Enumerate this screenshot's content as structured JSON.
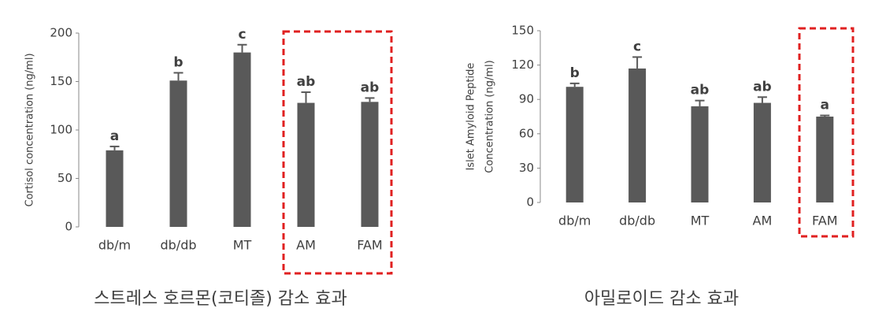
{
  "chart_data": [
    {
      "type": "bar",
      "title": "스트레스 호르몬(코티졸) 감소 효과",
      "y_label": "Cortisol concentration (ng/ml)",
      "categories": [
        "db/m",
        "db/db",
        "MT",
        "AM",
        "FAM"
      ],
      "values": [
        79,
        151,
        180,
        128,
        129
      ],
      "errors": [
        4,
        8,
        8,
        11,
        4
      ],
      "annotations": [
        "a",
        "b",
        "c",
        "ab",
        "ab"
      ],
      "color": "#595959",
      "ylim": [
        0,
        200
      ],
      "yticks": [
        0,
        50,
        100,
        150,
        200
      ]
    },
    {
      "type": "bar",
      "title": "아밀로이드 감소 효과",
      "y_label": [
        "Islet Amyloid Peptide",
        "Concentration (ng/ml)"
      ],
      "categories": [
        "db/m",
        "db/db",
        "MT",
        "AM",
        "FAM"
      ],
      "values": [
        101,
        117,
        84,
        87,
        75
      ],
      "errors": [
        3,
        10,
        5,
        5,
        1
      ],
      "annotations": [
        "b",
        "c",
        "ab",
        "ab",
        "a"
      ],
      "color": "#595959",
      "ylim": [
        0,
        150
      ],
      "yticks": [
        0,
        30,
        60,
        90,
        120,
        150
      ]
    }
  ]
}
